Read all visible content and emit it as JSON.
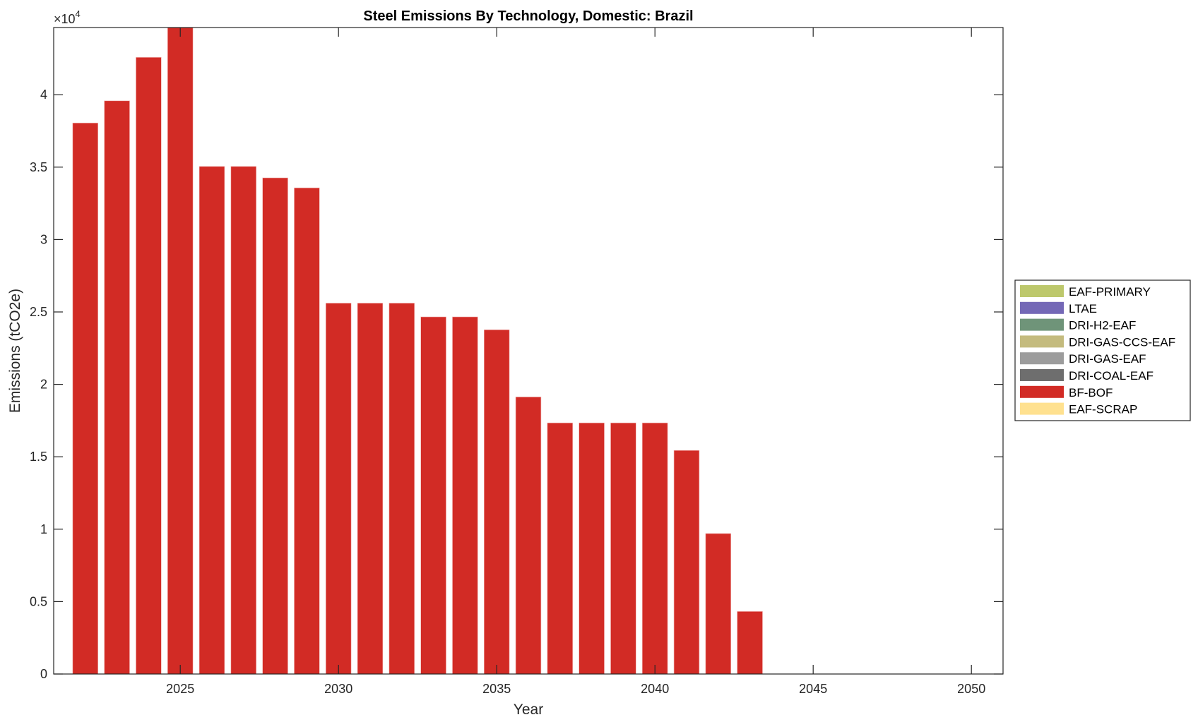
{
  "chart_data": {
    "type": "bar",
    "stacked": true,
    "title": "Steel Emissions By Technology, Domestic: Brazil",
    "xlabel": "Year",
    "ylabel": "Emissions (tCO2e)",
    "y_exponent_label": "×10",
    "y_exponent": "4",
    "xlim": [
      2021,
      2051
    ],
    "ylim": [
      0,
      44640
    ],
    "xticks": [
      2025,
      2030,
      2035,
      2040,
      2045,
      2050
    ],
    "xtick_labels": [
      "2025",
      "2030",
      "2035",
      "2040",
      "2045",
      "2050"
    ],
    "yticks": [
      0,
      5000,
      10000,
      15000,
      20000,
      25000,
      30000,
      35000,
      40000
    ],
    "ytick_labels": [
      "0",
      "0.5",
      "1",
      "1.5",
      "2",
      "2.5",
      "3",
      "3.5",
      "4"
    ],
    "grid": false,
    "legend_position": "right",
    "categories": [
      2022,
      2023,
      2024,
      2025,
      2026,
      2027,
      2028,
      2029,
      2030,
      2031,
      2032,
      2033,
      2034,
      2035,
      2036,
      2037,
      2038,
      2039,
      2040,
      2041,
      2042,
      2043,
      2044,
      2045,
      2046,
      2047,
      2048,
      2049,
      2050
    ],
    "series": [
      {
        "name": "EAF-PRIMARY",
        "color": "#BDC86C",
        "values": [
          0,
          0,
          0,
          0,
          0,
          0,
          0,
          0,
          0,
          0,
          0,
          0,
          0,
          0,
          0,
          0,
          0,
          0,
          0,
          0,
          0,
          0,
          0,
          0,
          0,
          0,
          0,
          0,
          0
        ]
      },
      {
        "name": "LTAE",
        "color": "#7468B6",
        "values": [
          0,
          0,
          0,
          0,
          0,
          0,
          0,
          0,
          0,
          0,
          0,
          0,
          0,
          0,
          0,
          0,
          0,
          0,
          0,
          0,
          0,
          0,
          0,
          0,
          0,
          0,
          0,
          0,
          0
        ]
      },
      {
        "name": "DRI-H2-EAF",
        "color": "#6F9479",
        "values": [
          0,
          0,
          0,
          0,
          0,
          0,
          0,
          0,
          0,
          0,
          0,
          0,
          0,
          0,
          0,
          0,
          0,
          0,
          0,
          0,
          0,
          0,
          0,
          0,
          0,
          0,
          0,
          0,
          0
        ]
      },
      {
        "name": "DRI-GAS-CCS-EAF",
        "color": "#C4BB7E",
        "values": [
          0,
          0,
          0,
          0,
          0,
          0,
          0,
          0,
          0,
          0,
          0,
          0,
          0,
          0,
          0,
          0,
          0,
          0,
          0,
          0,
          0,
          0,
          0,
          0,
          0,
          0,
          0,
          0,
          0
        ]
      },
      {
        "name": "DRI-GAS-EAF",
        "color": "#9C9C9C",
        "values": [
          0,
          0,
          0,
          0,
          0,
          0,
          0,
          0,
          0,
          0,
          0,
          0,
          0,
          0,
          0,
          0,
          0,
          0,
          0,
          0,
          0,
          0,
          0,
          0,
          0,
          0,
          0,
          0,
          0
        ]
      },
      {
        "name": "DRI-COAL-EAF",
        "color": "#6E6E6E",
        "values": [
          0,
          0,
          0,
          0,
          0,
          0,
          0,
          0,
          0,
          0,
          0,
          0,
          0,
          0,
          0,
          0,
          0,
          0,
          0,
          0,
          0,
          0,
          0,
          0,
          0,
          0,
          0,
          0,
          0
        ]
      },
      {
        "name": "BF-BOF",
        "color": "#D22B25",
        "values": [
          38050,
          39580,
          42580,
          44640,
          35050,
          35050,
          34260,
          33570,
          25610,
          25610,
          25610,
          24660,
          24660,
          23770,
          19130,
          17340,
          17340,
          17340,
          17340,
          15440,
          9700,
          4320,
          0,
          0,
          0,
          0,
          0,
          0,
          0
        ]
      },
      {
        "name": "EAF-SCRAP",
        "color": "#FFE18F",
        "values": [
          0,
          0,
          0,
          0,
          0,
          0,
          0,
          0,
          0,
          0,
          0,
          0,
          0,
          0,
          0,
          0,
          0,
          0,
          0,
          0,
          0,
          0,
          0,
          0,
          0,
          0,
          0,
          0,
          0
        ]
      }
    ]
  }
}
